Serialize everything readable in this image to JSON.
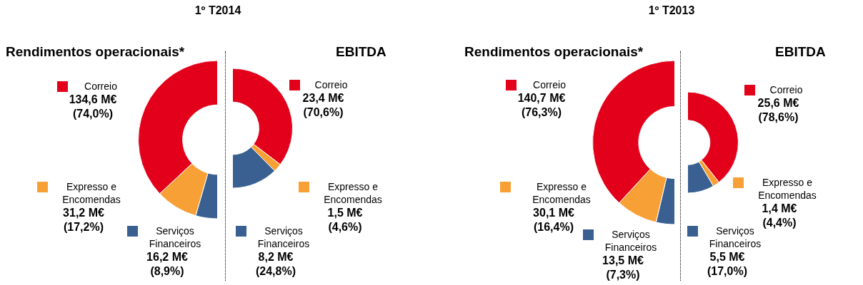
{
  "chart_data": [
    {
      "type": "donut",
      "legend": "left",
      "subtitle": "1º T2014",
      "title": "Rendimentos operacionais*",
      "categories": [
        "Correio",
        "Expresso e Encomendas",
        "Serviços Financeiros"
      ],
      "values": [
        134.6,
        31.2,
        16.2
      ],
      "colors": [
        "#e2001a",
        "#f7a035",
        "#3a6092"
      ],
      "value_labels": [
        "134,6 M€\n(74,0%)",
        "31,2 M€\n(17,2%)",
        "16,2 M€\n(8,9%)"
      ]
    },
    {
      "type": "donut",
      "legend": "right",
      "title": "EBITDA",
      "categories": [
        "Correio",
        "Expresso e Encomendas",
        "Serviços Financeiros"
      ],
      "values": [
        23.4,
        1.5,
        8.2
      ],
      "colors": [
        "#e2001a",
        "#f7a035",
        "#3a6092"
      ],
      "value_labels": [
        "23,4 M€\n(70,6%)",
        "1,5 M€\n(4,6%)",
        "8,2 M€\n(24,8%)"
      ]
    },
    {
      "type": "donut",
      "legend": "left",
      "subtitle": "1º T2013",
      "title": "Rendimentos operacionais*",
      "categories": [
        "Correio",
        "Expresso e Encomendas",
        "Serviços Financeiros"
      ],
      "values": [
        140.7,
        30.1,
        13.5
      ],
      "colors": [
        "#e2001a",
        "#f7a035",
        "#3a6092"
      ],
      "value_labels": [
        "140,7 M€\n(76,3%)",
        "30,1 M€\n(16,4%)",
        "13,5 M€\n(7,3%)"
      ]
    },
    {
      "type": "donut",
      "legend": "right",
      "title": "EBITDA",
      "categories": [
        "Correio",
        "Expresso e Encomendas",
        "Serviços Financeiros"
      ],
      "values": [
        25.6,
        1.4,
        5.5
      ],
      "colors": [
        "#e2001a",
        "#f7a035",
        "#3a6092"
      ],
      "value_labels": [
        "25,6 M€\n(78,6%)",
        "1,4 M€\n(4,4%)",
        "5,5 M€\n(17,0%)"
      ]
    }
  ]
}
